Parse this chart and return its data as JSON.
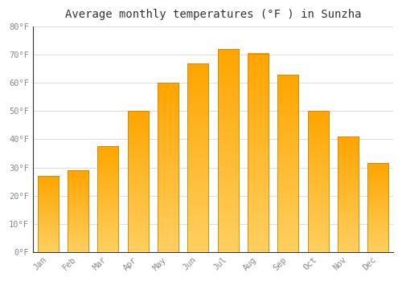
{
  "title": "Average monthly temperatures (°F ) in Sunzha",
  "months": [
    "Jan",
    "Feb",
    "Mar",
    "Apr",
    "May",
    "Jun",
    "Jul",
    "Aug",
    "Sep",
    "Oct",
    "Nov",
    "Dec"
  ],
  "values": [
    27,
    29,
    37.5,
    50,
    60,
    67,
    72,
    70.5,
    63,
    50,
    41,
    31.5
  ],
  "bar_color_top": "#FFA500",
  "bar_color_bottom": "#FFD060",
  "bar_edge_color": "#CC8800",
  "background_color": "#FFFFFF",
  "plot_bg_color": "#FFFFFF",
  "grid_color": "#DDDDDD",
  "ylim": [
    0,
    80
  ],
  "yticks": [
    0,
    10,
    20,
    30,
    40,
    50,
    60,
    70,
    80
  ],
  "ytick_labels": [
    "0°F",
    "10°F",
    "20°F",
    "30°F",
    "40°F",
    "50°F",
    "60°F",
    "70°F",
    "80°F"
  ],
  "title_fontsize": 10,
  "tick_fontsize": 7.5,
  "font_family": "monospace",
  "bar_width": 0.7,
  "gradient_stops": [
    "#FFD060",
    "#FFA020"
  ]
}
